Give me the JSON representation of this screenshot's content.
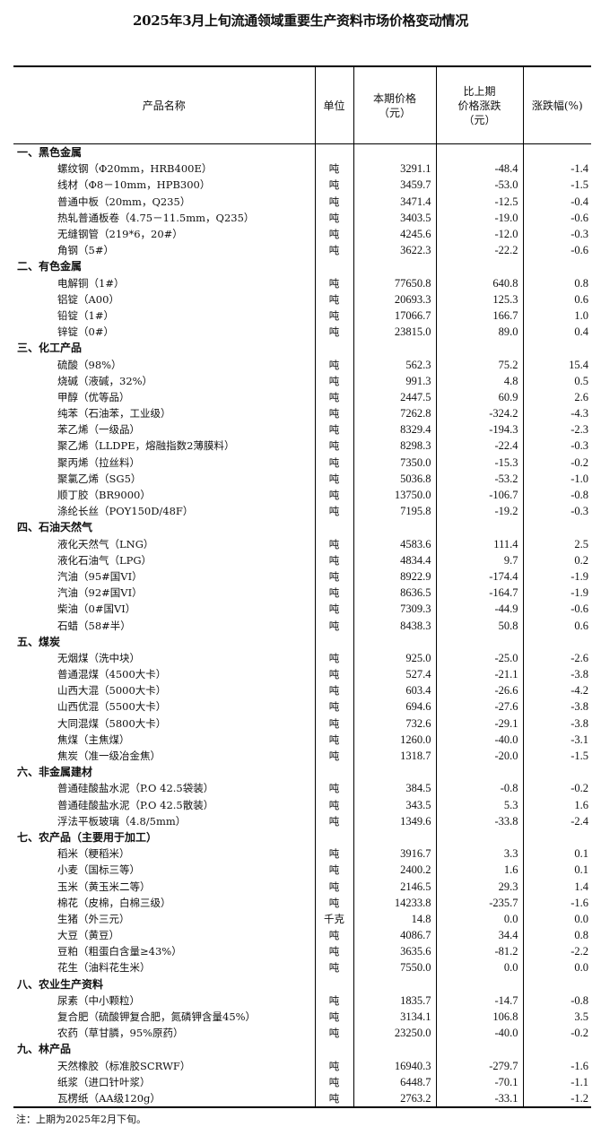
{
  "title": "2025年3月上旬流通领域重要生产资料市场价格变动情况",
  "headers": {
    "name": "产品名称",
    "unit": "单位",
    "price_l1": "本期价格",
    "price_l2": "（元）",
    "change_l1": "比上期",
    "change_l2": "价格涨跌",
    "change_l3": "（元）",
    "pct": "涨跌幅(%)"
  },
  "sections": [
    {
      "name": "一、黑色金属",
      "items": [
        [
          "螺纹钢（Φ20mm，HRB400E）",
          "吨",
          "3291.1",
          "-48.4",
          "-1.4"
        ],
        [
          "线材（Φ8－10mm，HPB300）",
          "吨",
          "3459.7",
          "-53.0",
          "-1.5"
        ],
        [
          "普通中板（20mm，Q235）",
          "吨",
          "3471.4",
          "-12.5",
          "-0.4"
        ],
        [
          "热轧普通板卷（4.75－11.5mm，Q235）",
          "吨",
          "3403.5",
          "-19.0",
          "-0.6"
        ],
        [
          "无缝钢管（219*6，20#）",
          "吨",
          "4245.6",
          "-12.0",
          "-0.3"
        ],
        [
          "角钢（5#）",
          "吨",
          "3622.3",
          "-22.2",
          "-0.6"
        ]
      ]
    },
    {
      "name": "二、有色金属",
      "items": [
        [
          "电解铜（1#）",
          "吨",
          "77650.8",
          "640.8",
          "0.8"
        ],
        [
          "铝锭（A00）",
          "吨",
          "20693.3",
          "125.3",
          "0.6"
        ],
        [
          "铅锭（1#）",
          "吨",
          "17066.7",
          "166.7",
          "1.0"
        ],
        [
          "锌锭（0#）",
          "吨",
          "23815.0",
          "89.0",
          "0.4"
        ]
      ]
    },
    {
      "name": "三、化工产品",
      "items": [
        [
          "硫酸（98%）",
          "吨",
          "562.3",
          "75.2",
          "15.4"
        ],
        [
          "烧碱（液碱，32%）",
          "吨",
          "991.3",
          "4.8",
          "0.5"
        ],
        [
          "甲醇（优等品）",
          "吨",
          "2447.5",
          "60.9",
          "2.6"
        ],
        [
          "纯苯（石油苯，工业级）",
          "吨",
          "7262.8",
          "-324.2",
          "-4.3"
        ],
        [
          "苯乙烯（一级品）",
          "吨",
          "8329.4",
          "-194.3",
          "-2.3"
        ],
        [
          "聚乙烯（LLDPE，熔融指数2薄膜料）",
          "吨",
          "8298.3",
          "-22.4",
          "-0.3"
        ],
        [
          "聚丙烯（拉丝料）",
          "吨",
          "7350.0",
          "-15.3",
          "-0.2"
        ],
        [
          "聚氯乙烯（SG5）",
          "吨",
          "5036.8",
          "-53.2",
          "-1.0"
        ],
        [
          "顺丁胶（BR9000）",
          "吨",
          "13750.0",
          "-106.7",
          "-0.8"
        ],
        [
          "涤纶长丝（POY150D/48F）",
          "吨",
          "7195.8",
          "-19.2",
          "-0.3"
        ]
      ]
    },
    {
      "name": "四、石油天然气",
      "items": [
        [
          "液化天然气（LNG）",
          "吨",
          "4583.6",
          "111.4",
          "2.5"
        ],
        [
          "液化石油气（LPG）",
          "吨",
          "4834.4",
          "9.7",
          "0.2"
        ],
        [
          "汽油（95#国VI）",
          "吨",
          "8922.9",
          "-174.4",
          "-1.9"
        ],
        [
          "汽油（92#国VI）",
          "吨",
          "8636.5",
          "-164.7",
          "-1.9"
        ],
        [
          "柴油（0#国VI）",
          "吨",
          "7309.3",
          "-44.9",
          "-0.6"
        ],
        [
          "石蜡（58#半）",
          "吨",
          "8438.3",
          "50.8",
          "0.6"
        ]
      ]
    },
    {
      "name": "五、煤炭",
      "items": [
        [
          "无烟煤（洗中块）",
          "吨",
          "925.0",
          "-25.0",
          "-2.6"
        ],
        [
          "普通混煤（4500大卡）",
          "吨",
          "527.4",
          "-21.1",
          "-3.8"
        ],
        [
          "山西大混（5000大卡）",
          "吨",
          "603.4",
          "-26.6",
          "-4.2"
        ],
        [
          "山西优混（5500大卡）",
          "吨",
          "694.6",
          "-27.6",
          "-3.8"
        ],
        [
          "大同混煤（5800大卡）",
          "吨",
          "732.6",
          "-29.1",
          "-3.8"
        ],
        [
          "焦煤（主焦煤）",
          "吨",
          "1260.0",
          "-40.0",
          "-3.1"
        ],
        [
          "焦炭（准一级冶金焦）",
          "吨",
          "1318.7",
          "-20.0",
          "-1.5"
        ]
      ]
    },
    {
      "name": "六、非金属建材",
      "items": [
        [
          "普通硅酸盐水泥（P.O 42.5袋装）",
          "吨",
          "384.5",
          "-0.8",
          "-0.2"
        ],
        [
          "普通硅酸盐水泥（P.O 42.5散装）",
          "吨",
          "343.5",
          "5.3",
          "1.6"
        ],
        [
          "浮法平板玻璃（4.8/5mm）",
          "吨",
          "1349.6",
          "-33.8",
          "-2.4"
        ]
      ]
    },
    {
      "name": "七、农产品（主要用于加工）",
      "items": [
        [
          "稻米（粳稻米）",
          "吨",
          "3916.7",
          "3.3",
          "0.1"
        ],
        [
          "小麦（国标三等）",
          "吨",
          "2400.2",
          "1.6",
          "0.1"
        ],
        [
          "玉米（黄玉米二等）",
          "吨",
          "2146.5",
          "29.3",
          "1.4"
        ],
        [
          "棉花（皮棉，白棉三级）",
          "吨",
          "14233.8",
          "-235.7",
          "-1.6"
        ],
        [
          "生猪（外三元）",
          "千克",
          "14.8",
          "0.0",
          "0.0"
        ],
        [
          "大豆（黄豆）",
          "吨",
          "4086.7",
          "34.4",
          "0.8"
        ],
        [
          "豆粕（粗蛋白含量≥43%）",
          "吨",
          "3635.6",
          "-81.2",
          "-2.2"
        ],
        [
          "花生（油料花生米）",
          "吨",
          "7550.0",
          "0.0",
          "0.0"
        ]
      ]
    },
    {
      "name": "八、农业生产资料",
      "items": [
        [
          "尿素（中小颗粒）",
          "吨",
          "1835.7",
          "-14.7",
          "-0.8"
        ],
        [
          "复合肥（硫酸钾复合肥，氮磷钾含量45%）",
          "吨",
          "3134.1",
          "106.8",
          "3.5"
        ],
        [
          "农药（草甘膦，95%原药）",
          "吨",
          "23250.0",
          "-40.0",
          "-0.2"
        ]
      ]
    },
    {
      "name": "九、林产品",
      "items": [
        [
          "天然橡胶（标准胶SCRWF）",
          "吨",
          "16940.3",
          "-279.7",
          "-1.6"
        ],
        [
          "纸浆（进口针叶浆）",
          "吨",
          "6448.7",
          "-70.1",
          "-1.1"
        ],
        [
          "瓦楞纸（AA级120g）",
          "吨",
          "2763.2",
          "-33.1",
          "-1.2"
        ]
      ]
    }
  ],
  "note": "注：上期为2025年2月下旬。"
}
